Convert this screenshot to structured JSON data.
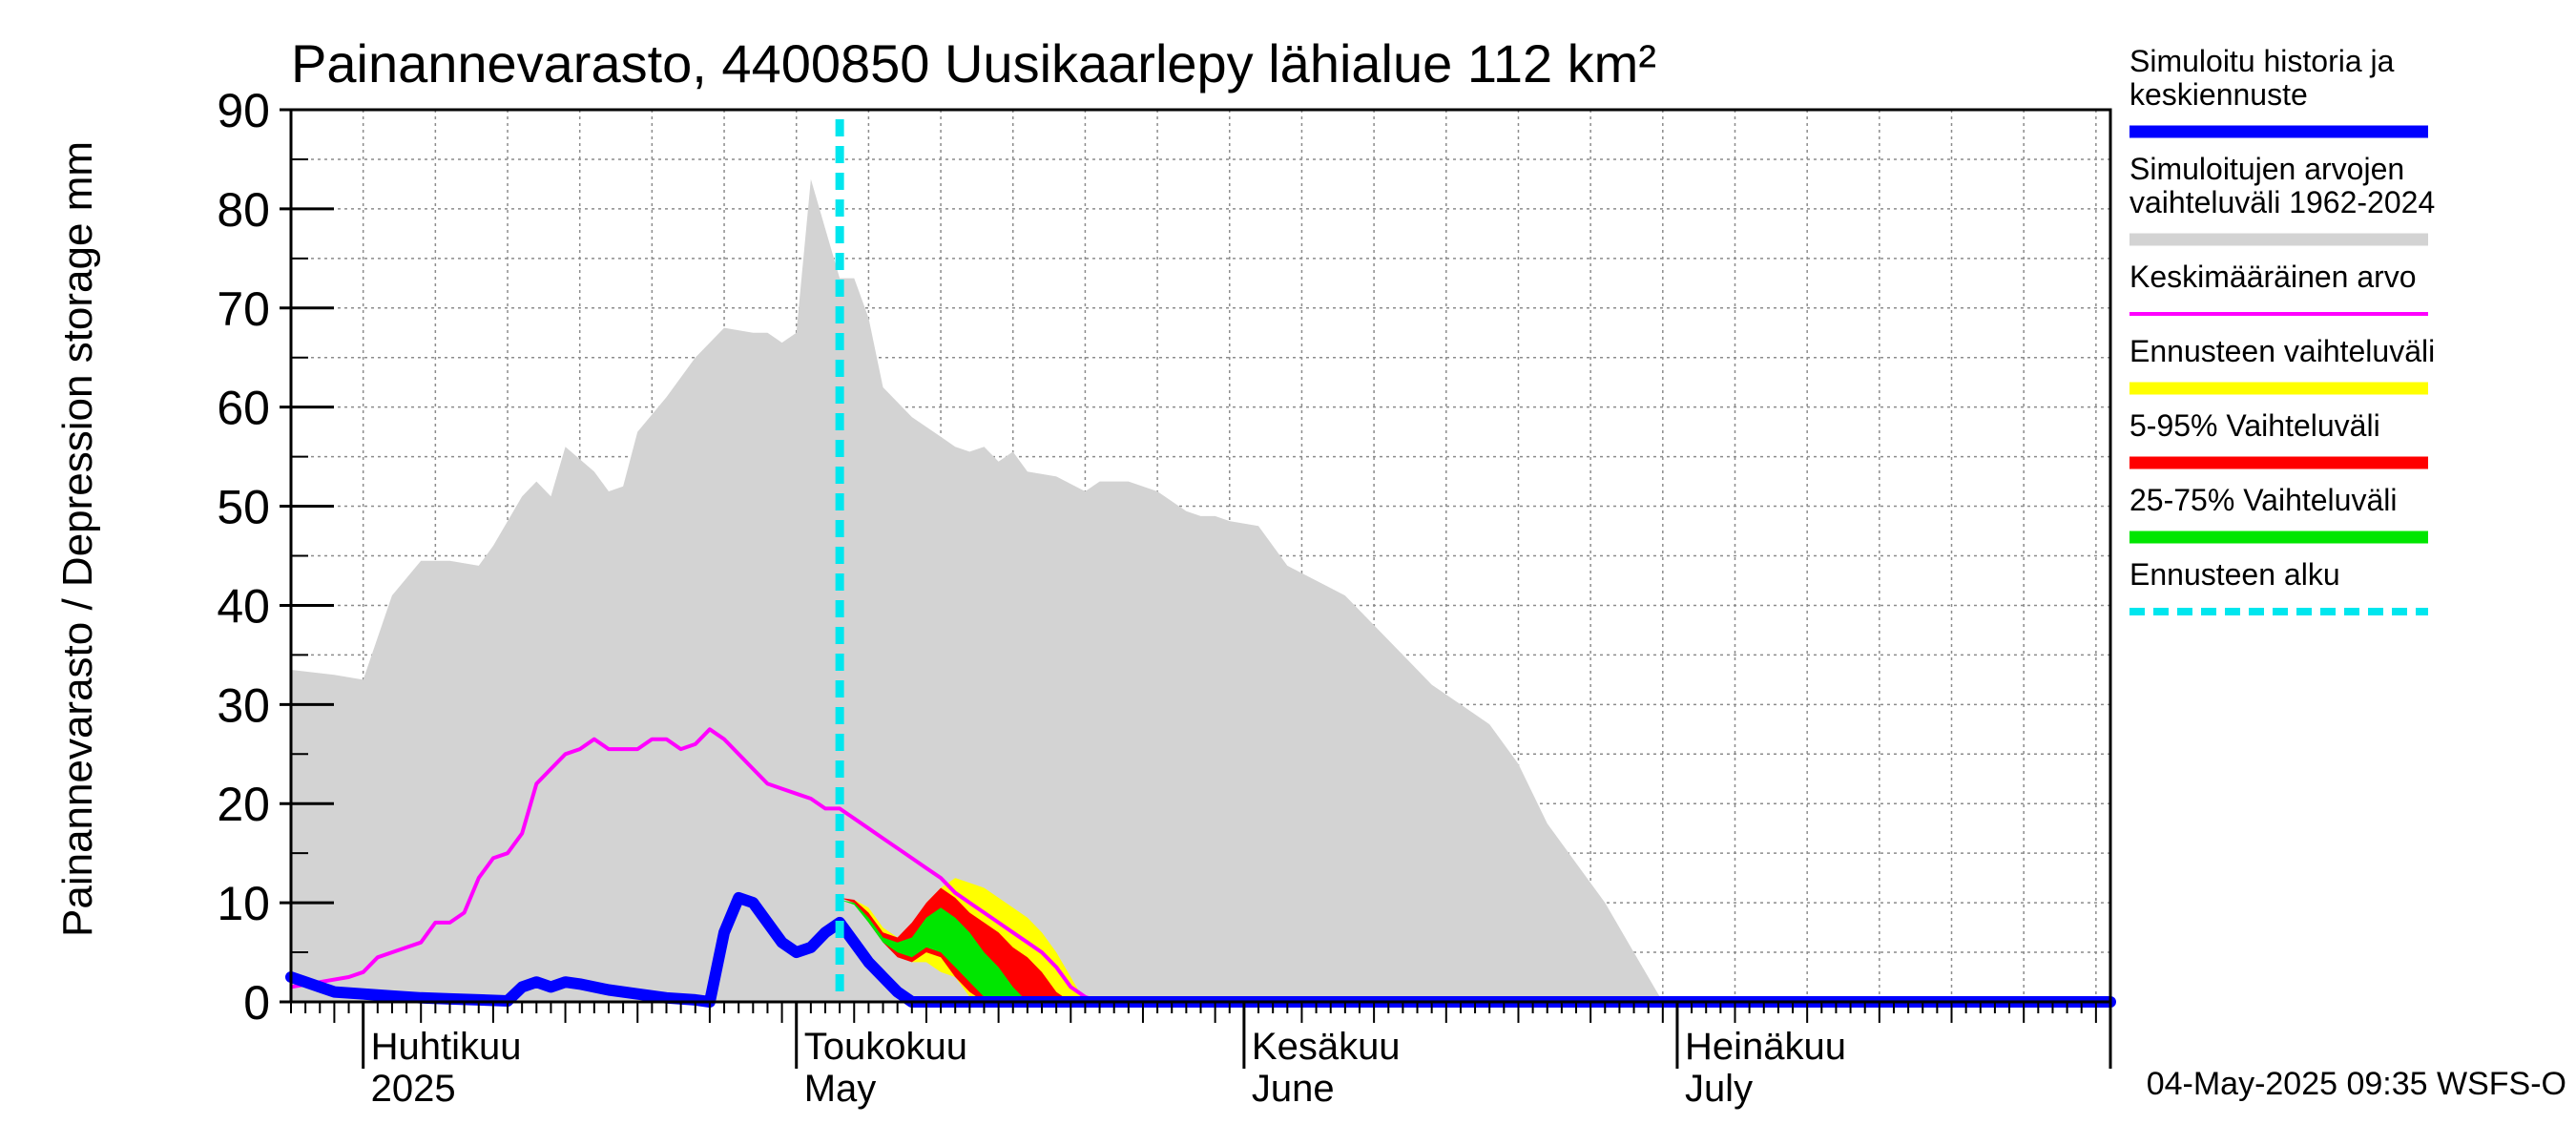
{
  "chart_data": {
    "type": "area",
    "title": "Painannevarasto, 4400850 Uusikaarlepy lähialue 112 km²",
    "ylabel": "Painannevarasto / Depression storage    mm",
    "ylim": [
      0,
      90
    ],
    "yticks": [
      0,
      10,
      20,
      30,
      40,
      50,
      60,
      70,
      80,
      90
    ],
    "xlim": [
      "2025-03-27",
      "2025-07-31"
    ],
    "month_labels": [
      {
        "date": "2025-04-01",
        "line1": "Huhtikuu",
        "line2": "2025"
      },
      {
        "date": "2025-05-01",
        "line1": "Toukokuu",
        "line2": "May"
      },
      {
        "date": "2025-06-01",
        "line1": "Kesäkuu",
        "line2": "June"
      },
      {
        "date": "2025-07-01",
        "line1": "Heinäkuu",
        "line2": "July"
      }
    ],
    "grid": true,
    "legend_position": "right",
    "footer": "04-May-2025 09:35 WSFS-O",
    "forecast_start": "2025-05-04",
    "colors": {
      "history_range": "#d3d3d3",
      "simulated": "#0000ff",
      "mean": "#ff00ff",
      "forecast_range": "#ffff00",
      "range_5_95": "#ff0000",
      "range_25_75": "#00e600",
      "forecast_start": "#00e6ee"
    },
    "legend": [
      {
        "lines": [
          "Simuloitu historia ja",
          "keskiennuste"
        ],
        "color": "#0000ff",
        "style": "thick"
      },
      {
        "lines": [
          "Simuloitujen arvojen",
          "vaihteluväli 1962-2024"
        ],
        "color": "#d3d3d3",
        "style": "thick"
      },
      {
        "lines": [
          "Keskimääräinen arvo"
        ],
        "color": "#ff00ff",
        "style": "thin"
      },
      {
        "lines": [
          "Ennusteen vaihteluväli"
        ],
        "color": "#ffff00",
        "style": "thick"
      },
      {
        "lines": [
          "5-95% Vaihteluväli"
        ],
        "color": "#ff0000",
        "style": "thick"
      },
      {
        "lines": [
          "25-75% Vaihteluväli"
        ],
        "color": "#00e600",
        "style": "thick"
      },
      {
        "lines": [
          "Ennusteen alku"
        ],
        "color": "#00e6ee",
        "style": "dashed"
      }
    ],
    "series": [
      {
        "name": "Simuloitujen arvojen vaihteluväli 1962-2024",
        "role": "history_max",
        "points": [
          [
            "2025-03-27",
            33.5
          ],
          [
            "2025-03-30",
            33
          ],
          [
            "2025-04-01",
            32.5
          ],
          [
            "2025-04-03",
            41
          ],
          [
            "2025-04-05",
            44.5
          ],
          [
            "2025-04-07",
            44.5
          ],
          [
            "2025-04-09",
            44
          ],
          [
            "2025-04-10",
            46
          ],
          [
            "2025-04-12",
            51
          ],
          [
            "2025-04-13",
            52.5
          ],
          [
            "2025-04-14",
            51
          ],
          [
            "2025-04-15",
            56
          ],
          [
            "2025-04-17",
            53.5
          ],
          [
            "2025-04-18",
            51.5
          ],
          [
            "2025-04-19",
            52
          ],
          [
            "2025-04-20",
            57.5
          ],
          [
            "2025-04-22",
            61
          ],
          [
            "2025-04-24",
            65
          ],
          [
            "2025-04-26",
            68
          ],
          [
            "2025-04-28",
            67.5
          ],
          [
            "2025-04-29",
            67.5
          ],
          [
            "2025-04-30",
            66.5
          ],
          [
            "2025-05-01",
            67.5
          ],
          [
            "2025-05-02",
            83
          ],
          [
            "2025-05-03",
            78
          ],
          [
            "2025-05-04",
            73
          ],
          [
            "2025-05-05",
            73
          ],
          [
            "2025-05-06",
            69
          ],
          [
            "2025-05-07",
            62
          ],
          [
            "2025-05-09",
            59
          ],
          [
            "2025-05-11",
            57
          ],
          [
            "2025-05-12",
            56
          ],
          [
            "2025-05-13",
            55.5
          ],
          [
            "2025-05-14",
            56
          ],
          [
            "2025-05-15",
            54.5
          ],
          [
            "2025-05-16",
            55.5
          ],
          [
            "2025-05-17",
            53.5
          ],
          [
            "2025-05-19",
            53
          ],
          [
            "2025-05-21",
            51.5
          ],
          [
            "2025-05-22",
            52.5
          ],
          [
            "2025-05-24",
            52.5
          ],
          [
            "2025-05-26",
            51.5
          ],
          [
            "2025-05-28",
            49.5
          ],
          [
            "2025-05-29",
            49
          ],
          [
            "2025-05-30",
            49
          ],
          [
            "2025-05-31",
            48.5
          ],
          [
            "2025-06-02",
            48
          ],
          [
            "2025-06-04",
            44
          ],
          [
            "2025-06-06",
            42.5
          ],
          [
            "2025-06-08",
            41
          ],
          [
            "2025-06-10",
            38
          ],
          [
            "2025-06-12",
            35
          ],
          [
            "2025-06-14",
            32
          ],
          [
            "2025-06-16",
            30
          ],
          [
            "2025-06-18",
            28
          ],
          [
            "2025-06-20",
            24
          ],
          [
            "2025-06-22",
            18
          ],
          [
            "2025-06-24",
            14
          ],
          [
            "2025-06-26",
            10
          ],
          [
            "2025-06-28",
            5
          ],
          [
            "2025-06-30",
            0
          ]
        ]
      },
      {
        "name": "Ennusteen vaihteluväli",
        "role": "forecast_band",
        "upper": [
          [
            "2025-05-04",
            10.5
          ],
          [
            "2025-05-05",
            10.3
          ],
          [
            "2025-05-06",
            9.5
          ],
          [
            "2025-05-07",
            7.5
          ],
          [
            "2025-05-08",
            6.5
          ],
          [
            "2025-05-09",
            7.5
          ],
          [
            "2025-05-10",
            10
          ],
          [
            "2025-05-11",
            11.5
          ],
          [
            "2025-05-12",
            12.5
          ],
          [
            "2025-05-13",
            12
          ],
          [
            "2025-05-14",
            11.5
          ],
          [
            "2025-05-15",
            10.5
          ],
          [
            "2025-05-16",
            9.5
          ],
          [
            "2025-05-17",
            8.5
          ],
          [
            "2025-05-18",
            7
          ],
          [
            "2025-05-19",
            5
          ],
          [
            "2025-05-20",
            2.5
          ],
          [
            "2025-05-21",
            0
          ]
        ],
        "lower": [
          [
            "2025-05-04",
            10.5
          ],
          [
            "2025-05-05",
            10.3
          ],
          [
            "2025-05-06",
            8.5
          ],
          [
            "2025-05-07",
            6.5
          ],
          [
            "2025-05-08",
            5
          ],
          [
            "2025-05-09",
            4
          ],
          [
            "2025-05-10",
            4
          ],
          [
            "2025-05-11",
            3
          ],
          [
            "2025-05-12",
            2.5
          ],
          [
            "2025-05-13",
            0.5
          ],
          [
            "2025-05-14",
            0
          ],
          [
            "2025-05-21",
            0
          ]
        ]
      },
      {
        "name": "5-95% Vaihteluväli",
        "role": "band_5_95",
        "upper": [
          [
            "2025-05-04",
            10.5
          ],
          [
            "2025-05-05",
            10.3
          ],
          [
            "2025-05-06",
            9
          ],
          [
            "2025-05-07",
            7
          ],
          [
            "2025-05-08",
            6.5
          ],
          [
            "2025-05-09",
            8
          ],
          [
            "2025-05-10",
            10
          ],
          [
            "2025-05-11",
            11.5
          ],
          [
            "2025-05-12",
            10.5
          ],
          [
            "2025-05-13",
            9
          ],
          [
            "2025-05-14",
            8
          ],
          [
            "2025-05-15",
            7
          ],
          [
            "2025-05-16",
            5.5
          ],
          [
            "2025-05-17",
            4.5
          ],
          [
            "2025-05-18",
            3
          ],
          [
            "2025-05-19",
            1
          ],
          [
            "2025-05-20",
            0
          ]
        ],
        "lower": [
          [
            "2025-05-04",
            10.5
          ],
          [
            "2025-05-05",
            10
          ],
          [
            "2025-05-06",
            8
          ],
          [
            "2025-05-07",
            6
          ],
          [
            "2025-05-08",
            4.5
          ],
          [
            "2025-05-09",
            4
          ],
          [
            "2025-05-10",
            5
          ],
          [
            "2025-05-11",
            4.5
          ],
          [
            "2025-05-12",
            2.5
          ],
          [
            "2025-05-13",
            1
          ],
          [
            "2025-05-14",
            0
          ],
          [
            "2025-05-20",
            0
          ]
        ]
      },
      {
        "name": "25-75% Vaihteluväli",
        "role": "band_25_75",
        "upper": [
          [
            "2025-05-04",
            10.3
          ],
          [
            "2025-05-05",
            10
          ],
          [
            "2025-05-06",
            8.5
          ],
          [
            "2025-05-07",
            6.5
          ],
          [
            "2025-05-08",
            6
          ],
          [
            "2025-05-09",
            6.5
          ],
          [
            "2025-05-10",
            8.5
          ],
          [
            "2025-05-11",
            9.5
          ],
          [
            "2025-05-12",
            8.5
          ],
          [
            "2025-05-13",
            7
          ],
          [
            "2025-05-14",
            5
          ],
          [
            "2025-05-15",
            3.5
          ],
          [
            "2025-05-16",
            1.5
          ],
          [
            "2025-05-17",
            0
          ]
        ],
        "lower": [
          [
            "2025-05-04",
            10.3
          ],
          [
            "2025-05-05",
            9.8
          ],
          [
            "2025-05-06",
            8
          ],
          [
            "2025-05-07",
            6
          ],
          [
            "2025-05-08",
            5
          ],
          [
            "2025-05-09",
            4.5
          ],
          [
            "2025-05-10",
            5.5
          ],
          [
            "2025-05-11",
            5
          ],
          [
            "2025-05-12",
            3.5
          ],
          [
            "2025-05-13",
            2
          ],
          [
            "2025-05-14",
            0.5
          ],
          [
            "2025-05-15",
            0
          ],
          [
            "2025-05-17",
            0
          ]
        ]
      },
      {
        "name": "Keskimääräinen arvo",
        "role": "mean",
        "points": [
          [
            "2025-03-27",
            1.5
          ],
          [
            "2025-03-29",
            2
          ],
          [
            "2025-03-31",
            2.5
          ],
          [
            "2025-04-01",
            3
          ],
          [
            "2025-04-02",
            4.5
          ],
          [
            "2025-04-04",
            5.5
          ],
          [
            "2025-04-05",
            6
          ],
          [
            "2025-04-06",
            8
          ],
          [
            "2025-04-07",
            8
          ],
          [
            "2025-04-08",
            9
          ],
          [
            "2025-04-09",
            12.5
          ],
          [
            "2025-04-10",
            14.5
          ],
          [
            "2025-04-11",
            15
          ],
          [
            "2025-04-12",
            17
          ],
          [
            "2025-04-13",
            22
          ],
          [
            "2025-04-14",
            23.5
          ],
          [
            "2025-04-15",
            25
          ],
          [
            "2025-04-16",
            25.5
          ],
          [
            "2025-04-17",
            26.5
          ],
          [
            "2025-04-18",
            25.5
          ],
          [
            "2025-04-20",
            25.5
          ],
          [
            "2025-04-21",
            26.5
          ],
          [
            "2025-04-22",
            26.5
          ],
          [
            "2025-04-23",
            25.5
          ],
          [
            "2025-04-24",
            26
          ],
          [
            "2025-04-25",
            27.5
          ],
          [
            "2025-04-26",
            26.5
          ],
          [
            "2025-04-27",
            25
          ],
          [
            "2025-04-28",
            23.5
          ],
          [
            "2025-04-29",
            22
          ],
          [
            "2025-04-30",
            21.5
          ],
          [
            "2025-05-01",
            21
          ],
          [
            "2025-05-02",
            20.5
          ],
          [
            "2025-05-03",
            19.5
          ],
          [
            "2025-05-04",
            19.5
          ],
          [
            "2025-05-05",
            18.5
          ],
          [
            "2025-05-06",
            17.5
          ],
          [
            "2025-05-07",
            16.5
          ],
          [
            "2025-05-08",
            15.5
          ],
          [
            "2025-05-09",
            14.5
          ],
          [
            "2025-05-10",
            13.5
          ],
          [
            "2025-05-11",
            12.5
          ],
          [
            "2025-05-12",
            11
          ],
          [
            "2025-05-13",
            10
          ],
          [
            "2025-05-14",
            9
          ],
          [
            "2025-05-15",
            8
          ],
          [
            "2025-05-16",
            7
          ],
          [
            "2025-05-17",
            6
          ],
          [
            "2025-05-18",
            5
          ],
          [
            "2025-05-19",
            3.5
          ],
          [
            "2025-05-20",
            1.5
          ],
          [
            "2025-05-21",
            0.5
          ],
          [
            "2025-05-22",
            0
          ],
          [
            "2025-07-31",
            0
          ]
        ]
      },
      {
        "name": "Simuloitu historia ja keskiennuste",
        "role": "simulated",
        "points": [
          [
            "2025-03-27",
            2.5
          ],
          [
            "2025-03-28",
            2
          ],
          [
            "2025-03-29",
            1.5
          ],
          [
            "2025-03-30",
            1
          ],
          [
            "2025-04-01",
            0.8
          ],
          [
            "2025-04-03",
            0.6
          ],
          [
            "2025-04-05",
            0.4
          ],
          [
            "2025-04-07",
            0.3
          ],
          [
            "2025-04-09",
            0.2
          ],
          [
            "2025-04-11",
            0.1
          ],
          [
            "2025-04-12",
            1.5
          ],
          [
            "2025-04-13",
            2
          ],
          [
            "2025-04-14",
            1.5
          ],
          [
            "2025-04-15",
            2
          ],
          [
            "2025-04-16",
            1.8
          ],
          [
            "2025-04-18",
            1.2
          ],
          [
            "2025-04-20",
            0.8
          ],
          [
            "2025-04-22",
            0.4
          ],
          [
            "2025-04-24",
            0.2
          ],
          [
            "2025-04-25",
            0
          ],
          [
            "2025-04-26",
            7
          ],
          [
            "2025-04-27",
            10.5
          ],
          [
            "2025-04-28",
            10
          ],
          [
            "2025-04-29",
            8
          ],
          [
            "2025-04-30",
            6
          ],
          [
            "2025-05-01",
            5
          ],
          [
            "2025-05-02",
            5.5
          ],
          [
            "2025-05-03",
            7
          ],
          [
            "2025-05-04",
            8
          ],
          [
            "2025-05-05",
            6
          ],
          [
            "2025-05-06",
            4
          ],
          [
            "2025-05-07",
            2.5
          ],
          [
            "2025-05-08",
            1
          ],
          [
            "2025-05-09",
            0
          ],
          [
            "2025-07-31",
            0
          ]
        ]
      }
    ]
  }
}
